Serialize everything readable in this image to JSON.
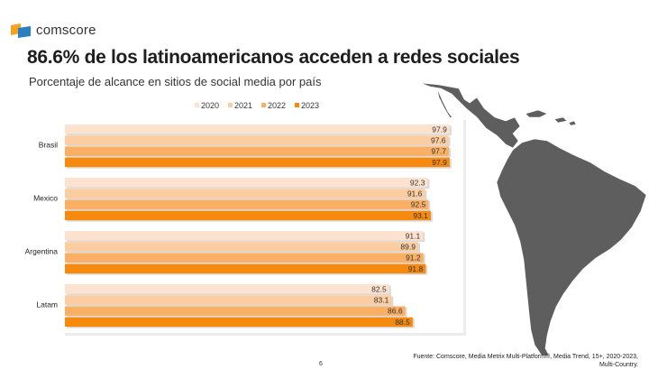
{
  "brand": {
    "name": "comscore"
  },
  "title": "86.6% de los latinoamericanos acceden a redes sociales",
  "subtitle": "Porcentaje de alcance en sitios de social media por país",
  "chart_data": {
    "type": "bar",
    "orientation": "horizontal",
    "categories": [
      "Brasil",
      "Mexico",
      "Argentina",
      "Latam"
    ],
    "series": [
      {
        "name": "2020",
        "values": [
          97.9,
          92.3,
          91.1,
          82.5
        ],
        "color": "#fde3cf"
      },
      {
        "name": "2021",
        "values": [
          97.6,
          91.6,
          89.9,
          83.1
        ],
        "color": "#fccda0"
      },
      {
        "name": "2022",
        "values": [
          97.7,
          92.5,
          91.2,
          86.6
        ],
        "color": "#f9b064"
      },
      {
        "name": "2023",
        "values": [
          97.9,
          93.1,
          91.8,
          88.5
        ],
        "color": "#f58a0f"
      }
    ],
    "legend_position": "top",
    "grid": false
  },
  "source": "Fuente: Comscore, Media Metrix Multi-Platform®, Media Trend, 15+, 2020-2023, Multi-Country.",
  "page_number": "6",
  "colors": {
    "map": "#5e5e5e",
    "map_stroke": "#ffffff",
    "accent": "#f58a0f"
  }
}
